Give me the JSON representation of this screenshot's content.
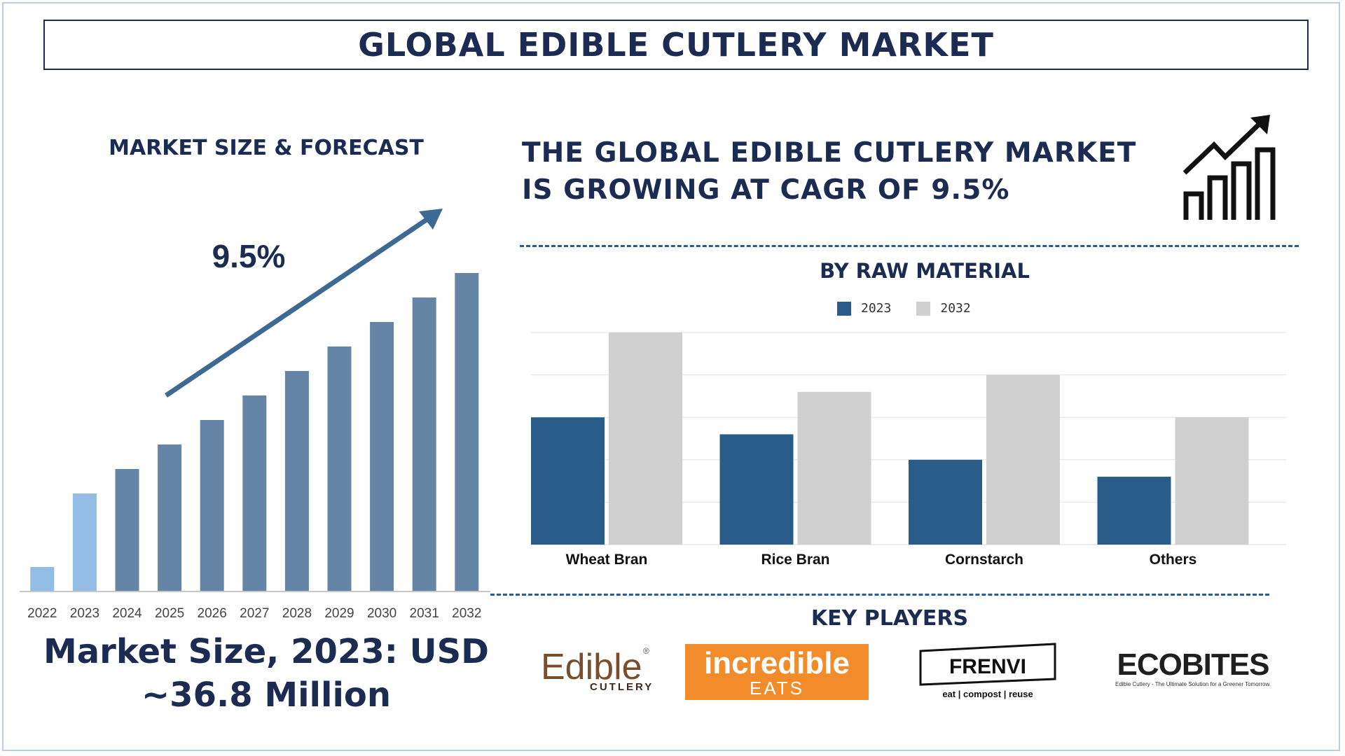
{
  "title": "GLOBAL EDIBLE CUTLERY MARKET",
  "left_subtitle": "MARKET SIZE & FORECAST",
  "headline": "THE GLOBAL EDIBLE CUTLERY MARKET IS GROWING AT CAGR OF 9.5%",
  "raw_material_title": "BY RAW MATERIAL",
  "key_players_title": "KEY PLAYERS",
  "market_size_text": "Market Size, 2023: USD ~36.8 Million",
  "colors": {
    "navy": "#1c2b52",
    "bar_forecast": "#6585a6",
    "bar_base": "#92bce3",
    "series_2023": "#2a5c8a",
    "series_2032": "#d0d0d0",
    "arrow": "#3d6a93"
  },
  "chart_data": [
    {
      "type": "bar",
      "title": "MARKET SIZE & FORECAST",
      "categories": [
        "2022",
        "2023",
        "2024",
        "2025",
        "2026",
        "2027",
        "2028",
        "2029",
        "2030",
        "2031",
        "2032"
      ],
      "values": [
        1,
        4,
        5,
        6,
        7,
        8,
        9,
        10,
        11,
        12,
        13
      ],
      "highlight_categories": [
        "2022",
        "2023"
      ],
      "annotation": "9.5%",
      "ylim": [
        0,
        14
      ]
    },
    {
      "type": "bar",
      "title": "BY RAW MATERIAL",
      "categories": [
        "Wheat Bran",
        "Rice Bran",
        "Cornstarch",
        "Others"
      ],
      "series": [
        {
          "name": "2023",
          "values": [
            3.0,
            2.6,
            2.0,
            1.6
          ]
        },
        {
          "name": "2032",
          "values": [
            5.0,
            3.6,
            4.0,
            3.0
          ]
        }
      ],
      "ylim": [
        0,
        5
      ],
      "grid": true,
      "legend": "top-center"
    }
  ],
  "logos": {
    "edible_cutlery": {
      "word": "Edible",
      "sub": "CUTLERY"
    },
    "incredible_eats": {
      "word": "incredible",
      "sub": "EATS"
    },
    "frenvi": {
      "word": "FRENVI",
      "sub": "eat | compost | reuse"
    },
    "ecobites": {
      "word": "ECOBITES",
      "sub": "Edible Cutlery - The Ultimate Solution for a Greener Tomorrow."
    }
  }
}
